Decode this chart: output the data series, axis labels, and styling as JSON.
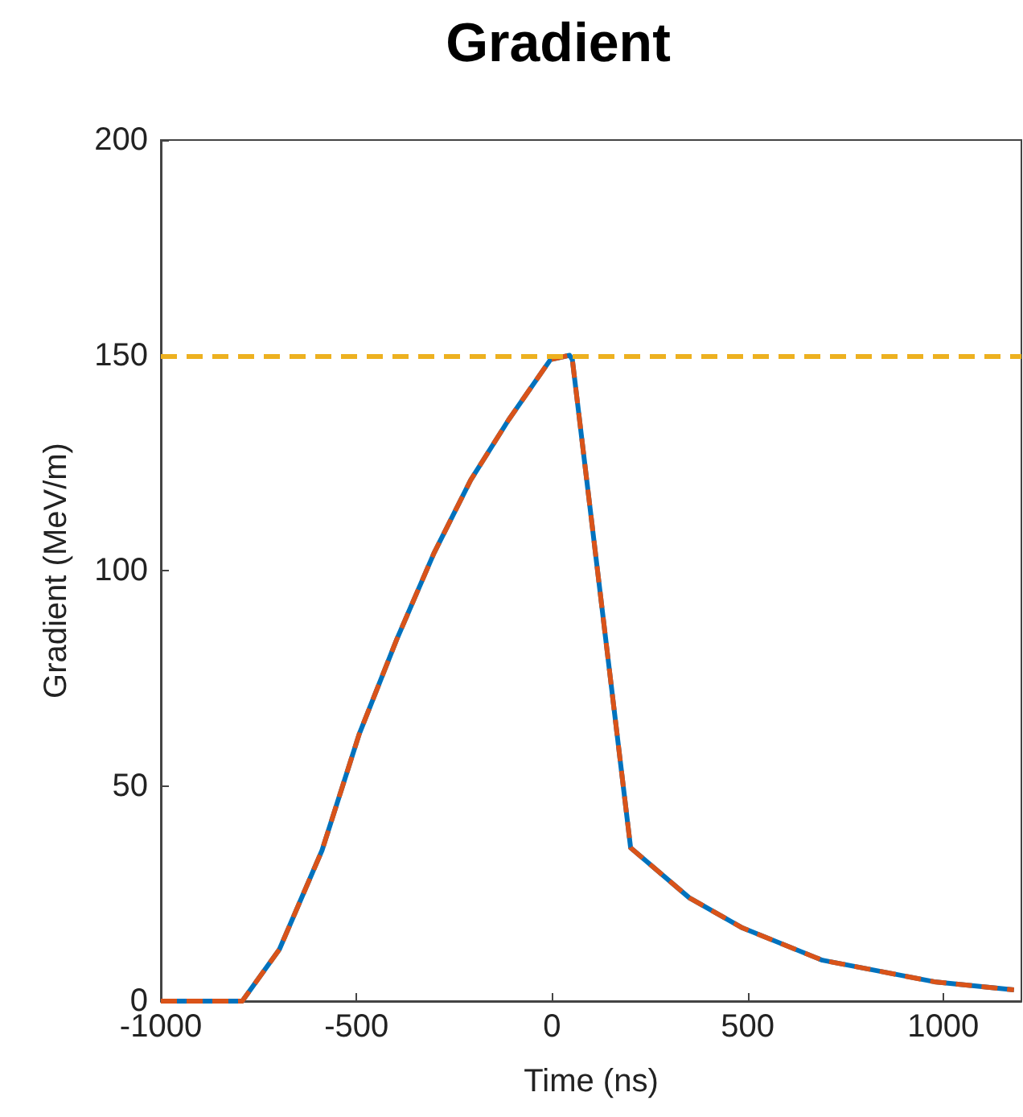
{
  "chart_data": {
    "type": "line",
    "title": "Gradient",
    "xlabel": "Time (ns)",
    "ylabel": "Gradient (MeV/m)",
    "xlim": [
      -1000,
      1200
    ],
    "xticks": [
      -1000,
      -500,
      0,
      500,
      1000
    ],
    "ylim": [
      0,
      200
    ],
    "yticks": [
      0,
      50,
      100,
      150,
      200
    ],
    "x": [
      -1000,
      -792,
      -697,
      -588,
      -493,
      -397,
      -302,
      -208,
      -111,
      -4,
      45,
      52,
      201,
      351,
      487,
      691,
      977,
      1181
    ],
    "series": [
      {
        "color": "#0072bd",
        "line_style": "solid",
        "values": [
          0,
          0,
          12,
          35,
          62,
          84,
          104,
          121,
          135,
          149,
          150,
          149,
          35.6,
          24,
          17,
          9.5,
          4.5,
          2.6
        ]
      },
      {
        "color": "#d95319",
        "line_style": "dashed",
        "values": [
          0,
          0,
          12,
          35,
          62,
          84,
          104,
          121,
          135,
          149,
          150,
          149,
          35.6,
          24,
          17,
          9.5,
          4.5,
          2.6
        ]
      }
    ],
    "ref_lines": [
      {
        "axis": "y",
        "value": 150,
        "color": "#edb120",
        "line_style": "dashed"
      }
    ],
    "marker": "none"
  }
}
